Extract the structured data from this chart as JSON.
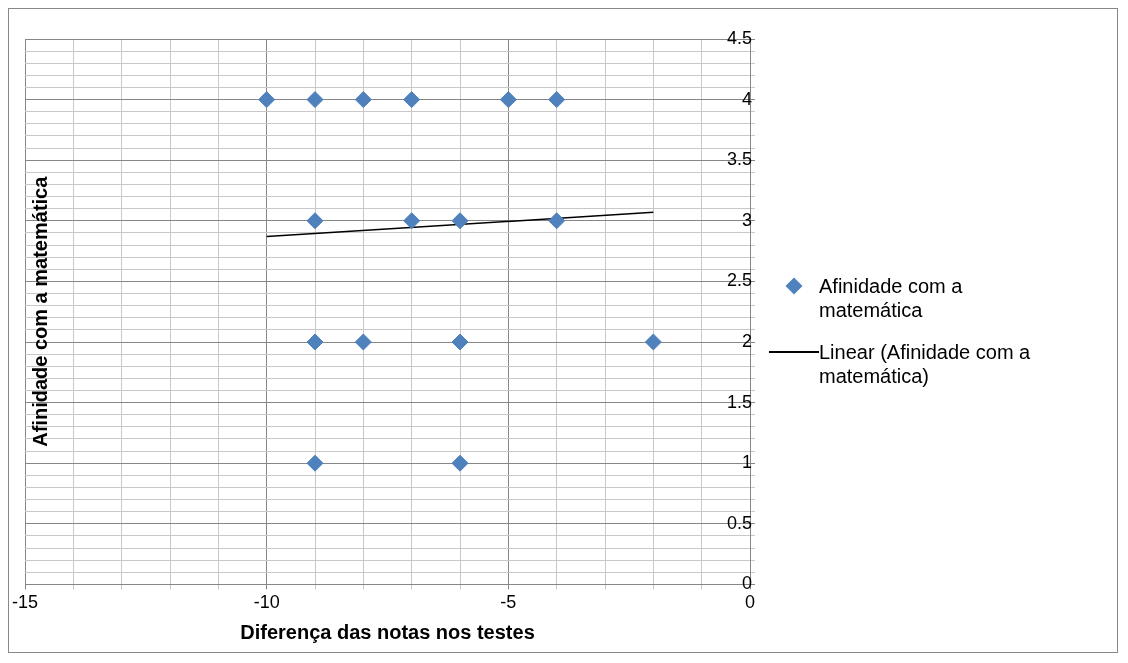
{
  "chart_data": {
    "type": "scatter",
    "xlabel": "Diferença das notas nos testes",
    "ylabel": "Afinidade com a matemática",
    "xlim": [
      -15,
      0
    ],
    "xticks": [
      -15,
      {
        "value": -14,
        "label": null
      },
      {
        "value": -13,
        "label": null
      },
      {
        "value": -12,
        "label": null
      },
      {
        "value": -11,
        "label": null
      },
      -10,
      {
        "value": -9,
        "label": null
      },
      {
        "value": -8,
        "label": null
      },
      {
        "value": -7,
        "label": null
      },
      {
        "value": -6,
        "label": null
      },
      -5,
      {
        "value": -4,
        "label": null
      },
      {
        "value": -3,
        "label": null
      },
      {
        "value": -2,
        "label": null
      },
      {
        "value": -1,
        "label": null
      },
      0
    ],
    "ylim": [
      0,
      4.5
    ],
    "yticks": [
      0,
      {
        "value": 0.1,
        "label": null
      },
      {
        "value": 0.2,
        "label": null
      },
      {
        "value": 0.3,
        "label": null
      },
      {
        "value": 0.4,
        "label": null
      },
      0.5,
      {
        "value": 0.6,
        "label": null
      },
      {
        "value": 0.7,
        "label": null
      },
      {
        "value": 0.8,
        "label": null
      },
      {
        "value": 0.9,
        "label": null
      },
      1,
      {
        "value": 1.1,
        "label": null
      },
      {
        "value": 1.2,
        "label": null
      },
      {
        "value": 1.3,
        "label": null
      },
      {
        "value": 1.4,
        "label": null
      },
      1.5,
      {
        "value": 1.6,
        "label": null
      },
      {
        "value": 1.7,
        "label": null
      },
      {
        "value": 1.8,
        "label": null
      },
      {
        "value": 1.9,
        "label": null
      },
      2,
      {
        "value": 2.1,
        "label": null
      },
      {
        "value": 2.2,
        "label": null
      },
      {
        "value": 2.3,
        "label": null
      },
      {
        "value": 2.4,
        "label": null
      },
      2.5,
      {
        "value": 2.6,
        "label": null
      },
      {
        "value": 2.7,
        "label": null
      },
      {
        "value": 2.8,
        "label": null
      },
      {
        "value": 2.9,
        "label": null
      },
      3,
      {
        "value": 3.1,
        "label": null
      },
      {
        "value": 3.2,
        "label": null
      },
      {
        "value": 3.3,
        "label": null
      },
      {
        "value": 3.4,
        "label": null
      },
      3.5,
      {
        "value": 3.6,
        "label": null
      },
      {
        "value": 3.7,
        "label": null
      },
      {
        "value": 3.8,
        "label": null
      },
      {
        "value": 3.9,
        "label": null
      },
      4,
      {
        "value": 4.1,
        "label": null
      },
      {
        "value": 4.2,
        "label": null
      },
      {
        "value": 4.3,
        "label": null
      },
      {
        "value": 4.4,
        "label": null
      },
      4.5
    ],
    "grid": true,
    "legend": "right",
    "series": [
      {
        "name": "Afinidade com a matemática",
        "marker": "diamond",
        "color": "#4f81bd",
        "x": [
          -10,
          -9,
          -8,
          -7,
          -5,
          -4,
          -9,
          -7,
          -6,
          -4,
          -9,
          -8,
          -6,
          -2,
          -9,
          -6
        ],
        "values": [
          4,
          4,
          4,
          4,
          4,
          4,
          3,
          3,
          3,
          3,
          2,
          2,
          2,
          2,
          1,
          1
        ]
      },
      {
        "name": "Linear (Afinidade com a matemática)",
        "type": "line",
        "marker": "none",
        "color": "#000000",
        "x": [
          -10,
          -2
        ],
        "values": [
          2.87,
          3.07
        ]
      }
    ]
  }
}
